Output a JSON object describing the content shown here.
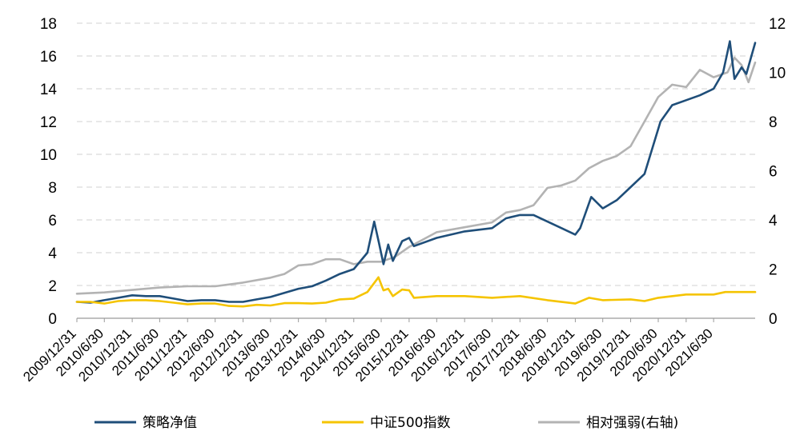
{
  "chart_data": {
    "type": "line",
    "title": "",
    "xlabel": "",
    "ylabel": "",
    "y2label": "",
    "ylim": [
      0,
      18
    ],
    "yticks": [
      "0",
      "2",
      "4",
      "6",
      "8",
      "10",
      "12",
      "14",
      "16",
      "18"
    ],
    "y2lim": [
      0,
      12
    ],
    "y2ticks": [
      "0",
      "2",
      "4",
      "6",
      "8",
      "10",
      "12"
    ],
    "grid": true,
    "legend_position": "bottom",
    "x_start": "2009/12/31",
    "x_end": "2022/3/31",
    "xticks": [
      "2009/12/31",
      "2010/6/30",
      "2010/12/31",
      "2011/6/30",
      "2011/12/31",
      "2012/6/30",
      "2012/12/31",
      "2013/6/30",
      "2013/12/31",
      "2014/6/30",
      "2014/12/31",
      "2015/6/30",
      "2015/12/31",
      "2016/6/30",
      "2016/12/31",
      "2017/6/30",
      "2017/12/31",
      "2018/6/30",
      "2018/12/31",
      "2019/6/30",
      "2019/12/31",
      "2020/6/30",
      "2020/12/31",
      "2021/6/30"
    ],
    "series": [
      {
        "name": "策略净值",
        "color": "#1f4e79",
        "axis": "left",
        "points": [
          [
            "2009/12/31",
            1.0
          ],
          [
            "2010/3/31",
            0.95
          ],
          [
            "2010/6/30",
            1.1
          ],
          [
            "2010/9/30",
            1.25
          ],
          [
            "2010/12/31",
            1.4
          ],
          [
            "2011/3/31",
            1.35
          ],
          [
            "2011/6/30",
            1.35
          ],
          [
            "2011/9/30",
            1.2
          ],
          [
            "2011/12/31",
            1.05
          ],
          [
            "2012/3/31",
            1.1
          ],
          [
            "2012/6/30",
            1.1
          ],
          [
            "2012/9/30",
            1.0
          ],
          [
            "2012/12/31",
            1.0
          ],
          [
            "2013/3/31",
            1.15
          ],
          [
            "2013/6/30",
            1.3
          ],
          [
            "2013/9/30",
            1.55
          ],
          [
            "2013/12/31",
            1.8
          ],
          [
            "2014/3/31",
            1.95
          ],
          [
            "2014/6/30",
            2.3
          ],
          [
            "2014/9/30",
            2.7
          ],
          [
            "2014/12/31",
            3.0
          ],
          [
            "2015/3/31",
            4.0
          ],
          [
            "2015/5/15",
            5.9
          ],
          [
            "2015/6/15",
            4.6
          ],
          [
            "2015/7/15",
            3.3
          ],
          [
            "2015/8/15",
            4.5
          ],
          [
            "2015/9/15",
            3.5
          ],
          [
            "2015/11/15",
            4.7
          ],
          [
            "2015/12/31",
            4.9
          ],
          [
            "2016/2/1",
            4.4
          ],
          [
            "2016/6/30",
            4.9
          ],
          [
            "2016/12/31",
            5.3
          ],
          [
            "2017/6/30",
            5.5
          ],
          [
            "2017/9/30",
            6.1
          ],
          [
            "2017/12/31",
            6.3
          ],
          [
            "2018/3/31",
            6.3
          ],
          [
            "2018/6/30",
            5.9
          ],
          [
            "2018/10/1",
            5.5
          ],
          [
            "2018/12/31",
            5.1
          ],
          [
            "2019/2/1",
            5.5
          ],
          [
            "2019/4/15",
            7.4
          ],
          [
            "2019/6/30",
            6.7
          ],
          [
            "2019/9/30",
            7.2
          ],
          [
            "2019/12/31",
            8.0
          ],
          [
            "2020/3/31",
            8.8
          ],
          [
            "2020/7/15",
            12.0
          ],
          [
            "2020/9/30",
            13.0
          ],
          [
            "2020/12/31",
            13.3
          ],
          [
            "2021/3/31",
            13.6
          ],
          [
            "2021/6/30",
            14.0
          ],
          [
            "2021/9/1",
            15.0
          ],
          [
            "2021/10/15",
            16.9
          ],
          [
            "2021/11/15",
            14.6
          ],
          [
            "2021/12/31",
            15.3
          ],
          [
            "2022/2/1",
            14.9
          ],
          [
            "2022/3/31",
            16.8
          ]
        ]
      },
      {
        "name": "中证500指数",
        "color": "#f5c400",
        "axis": "left",
        "points": [
          [
            "2009/12/31",
            1.0
          ],
          [
            "2010/3/31",
            1.0
          ],
          [
            "2010/6/30",
            0.9
          ],
          [
            "2010/9/30",
            1.05
          ],
          [
            "2010/12/31",
            1.1
          ],
          [
            "2011/3/31",
            1.1
          ],
          [
            "2011/6/30",
            1.05
          ],
          [
            "2011/9/30",
            0.95
          ],
          [
            "2011/12/31",
            0.85
          ],
          [
            "2012/3/31",
            0.9
          ],
          [
            "2012/6/30",
            0.9
          ],
          [
            "2012/9/30",
            0.75
          ],
          [
            "2012/12/31",
            0.72
          ],
          [
            "2013/3/31",
            0.82
          ],
          [
            "2013/6/30",
            0.78
          ],
          [
            "2013/9/30",
            0.92
          ],
          [
            "2013/12/31",
            0.92
          ],
          [
            "2014/3/31",
            0.9
          ],
          [
            "2014/6/30",
            0.95
          ],
          [
            "2014/9/30",
            1.15
          ],
          [
            "2014/12/31",
            1.2
          ],
          [
            "2015/3/31",
            1.6
          ],
          [
            "2015/6/12",
            2.5
          ],
          [
            "2015/7/15",
            1.7
          ],
          [
            "2015/8/15",
            1.8
          ],
          [
            "2015/9/15",
            1.35
          ],
          [
            "2015/11/15",
            1.75
          ],
          [
            "2015/12/31",
            1.7
          ],
          [
            "2016/2/1",
            1.25
          ],
          [
            "2016/6/30",
            1.35
          ],
          [
            "2016/12/31",
            1.35
          ],
          [
            "2017/6/30",
            1.25
          ],
          [
            "2017/12/31",
            1.35
          ],
          [
            "2018/6/30",
            1.1
          ],
          [
            "2018/12/31",
            0.9
          ],
          [
            "2019/3/31",
            1.25
          ],
          [
            "2019/6/30",
            1.1
          ],
          [
            "2019/12/31",
            1.15
          ],
          [
            "2020/3/31",
            1.05
          ],
          [
            "2020/6/30",
            1.25
          ],
          [
            "2020/12/31",
            1.45
          ],
          [
            "2021/6/30",
            1.45
          ],
          [
            "2021/9/15",
            1.6
          ],
          [
            "2021/12/31",
            1.6
          ],
          [
            "2022/3/31",
            1.6
          ]
        ]
      },
      {
        "name": "相对强弱(右轴)",
        "color": "#b3b3b3",
        "axis": "right",
        "points": [
          [
            "2009/12/31",
            1.0
          ],
          [
            "2010/6/30",
            1.05
          ],
          [
            "2010/12/31",
            1.15
          ],
          [
            "2011/6/30",
            1.25
          ],
          [
            "2011/12/31",
            1.3
          ],
          [
            "2012/6/30",
            1.3
          ],
          [
            "2012/12/31",
            1.45
          ],
          [
            "2013/6/30",
            1.65
          ],
          [
            "2013/9/30",
            1.8
          ],
          [
            "2013/12/31",
            2.15
          ],
          [
            "2014/3/31",
            2.2
          ],
          [
            "2014/6/30",
            2.4
          ],
          [
            "2014/9/30",
            2.4
          ],
          [
            "2014/12/31",
            2.2
          ],
          [
            "2015/3/31",
            2.3
          ],
          [
            "2015/6/30",
            2.3
          ],
          [
            "2015/9/30",
            2.5
          ],
          [
            "2015/12/31",
            2.9
          ],
          [
            "2016/3/31",
            3.2
          ],
          [
            "2016/6/30",
            3.5
          ],
          [
            "2016/12/31",
            3.7
          ],
          [
            "2017/6/30",
            3.9
          ],
          [
            "2017/9/30",
            4.3
          ],
          [
            "2017/12/31",
            4.4
          ],
          [
            "2018/3/31",
            4.6
          ],
          [
            "2018/6/30",
            5.3
          ],
          [
            "2018/9/30",
            5.4
          ],
          [
            "2018/12/31",
            5.6
          ],
          [
            "2019/3/31",
            6.1
          ],
          [
            "2019/6/30",
            6.4
          ],
          [
            "2019/9/30",
            6.6
          ],
          [
            "2019/12/31",
            7.0
          ],
          [
            "2020/3/31",
            8.0
          ],
          [
            "2020/6/30",
            9.0
          ],
          [
            "2020/9/30",
            9.5
          ],
          [
            "2020/12/31",
            9.4
          ],
          [
            "2021/3/31",
            10.1
          ],
          [
            "2021/6/30",
            9.8
          ],
          [
            "2021/9/30",
            10.0
          ],
          [
            "2021/11/15",
            10.6
          ],
          [
            "2021/12/31",
            10.3
          ],
          [
            "2022/2/15",
            9.6
          ],
          [
            "2022/3/31",
            10.4
          ]
        ]
      }
    ]
  }
}
